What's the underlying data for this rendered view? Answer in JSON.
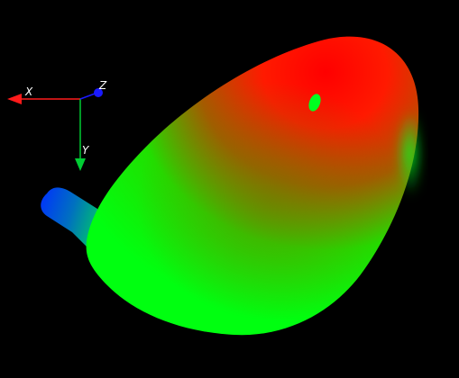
{
  "viewport": {
    "background": "#000000"
  },
  "axes": {
    "x": {
      "label": "X",
      "color": "#ff1a1a",
      "icon": "arrow-left"
    },
    "y": {
      "label": "Y",
      "color": "#00cc33",
      "icon": "arrow-down"
    },
    "z": {
      "label": "Z",
      "color": "#1a1aff",
      "icon": "dot"
    }
  },
  "model": {
    "colormap": [
      "#0040ff",
      "#00ff20",
      "#ff0000"
    ],
    "icon": "club-head-mesh"
  }
}
